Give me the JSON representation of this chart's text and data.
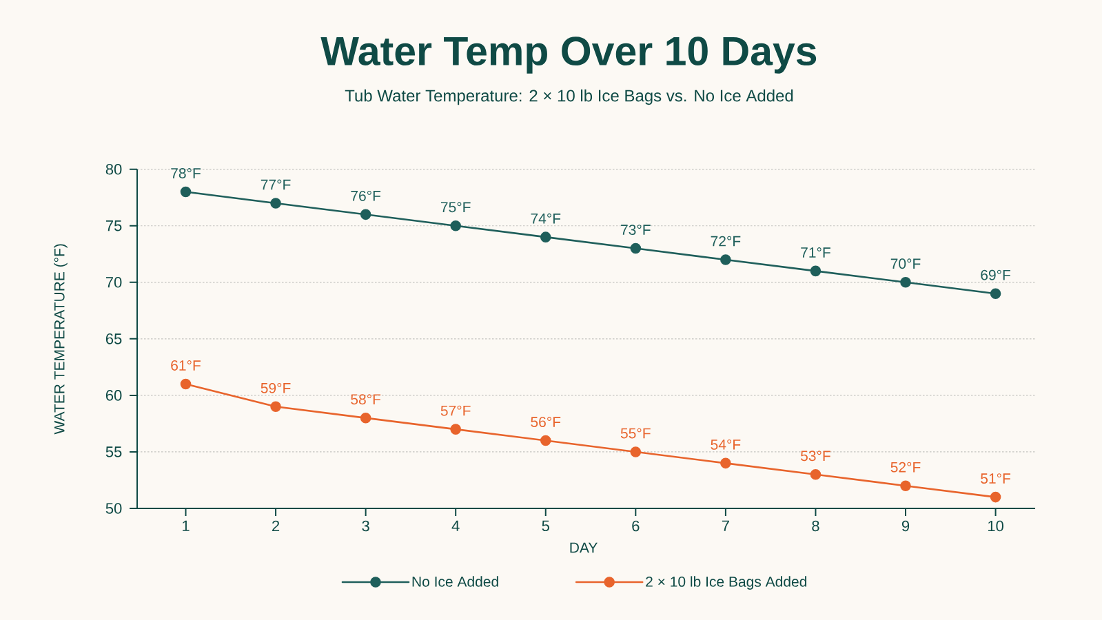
{
  "chart_data": {
    "type": "line",
    "title": "Water Temp Over 10 Days",
    "subtitle": "Tub Water Temperature: 2 × 10 lb Ice Bags vs. No Ice Added",
    "xlabel": "DAY",
    "ylabel": "WATER TEMPERATURE (°F)",
    "x": [
      1,
      2,
      3,
      4,
      5,
      6,
      7,
      8,
      9,
      10
    ],
    "xlim": [
      0.46,
      10.44
    ],
    "xticks": [
      1,
      2,
      3,
      4,
      5,
      6,
      7,
      8,
      9,
      10
    ],
    "ylim": [
      50,
      80
    ],
    "yticks": [
      50,
      55,
      60,
      65,
      70,
      75,
      80
    ],
    "grid": "y",
    "legend": "bottom",
    "marker": "circle",
    "line_style": "solid",
    "series": [
      {
        "name": "No Ice Added",
        "color": "#1f5f5b",
        "values": [
          78,
          77,
          76,
          75,
          74,
          73,
          72,
          71,
          70,
          69
        ],
        "value_labels": [
          "78°F",
          "77°F",
          "76°F",
          "75°F",
          "74°F",
          "73°F",
          "72°F",
          "71°F",
          "70°F",
          "69°F"
        ]
      },
      {
        "name": "2 × 10 lb Ice Bags Added",
        "color": "#e8642c",
        "values": [
          61,
          59,
          58,
          57,
          56,
          55,
          54,
          53,
          52,
          51
        ],
        "value_labels": [
          "61°F",
          "59°F",
          "58°F",
          "57°F",
          "56°F",
          "55°F",
          "54°F",
          "53°F",
          "52°F",
          "51°F"
        ]
      }
    ]
  }
}
